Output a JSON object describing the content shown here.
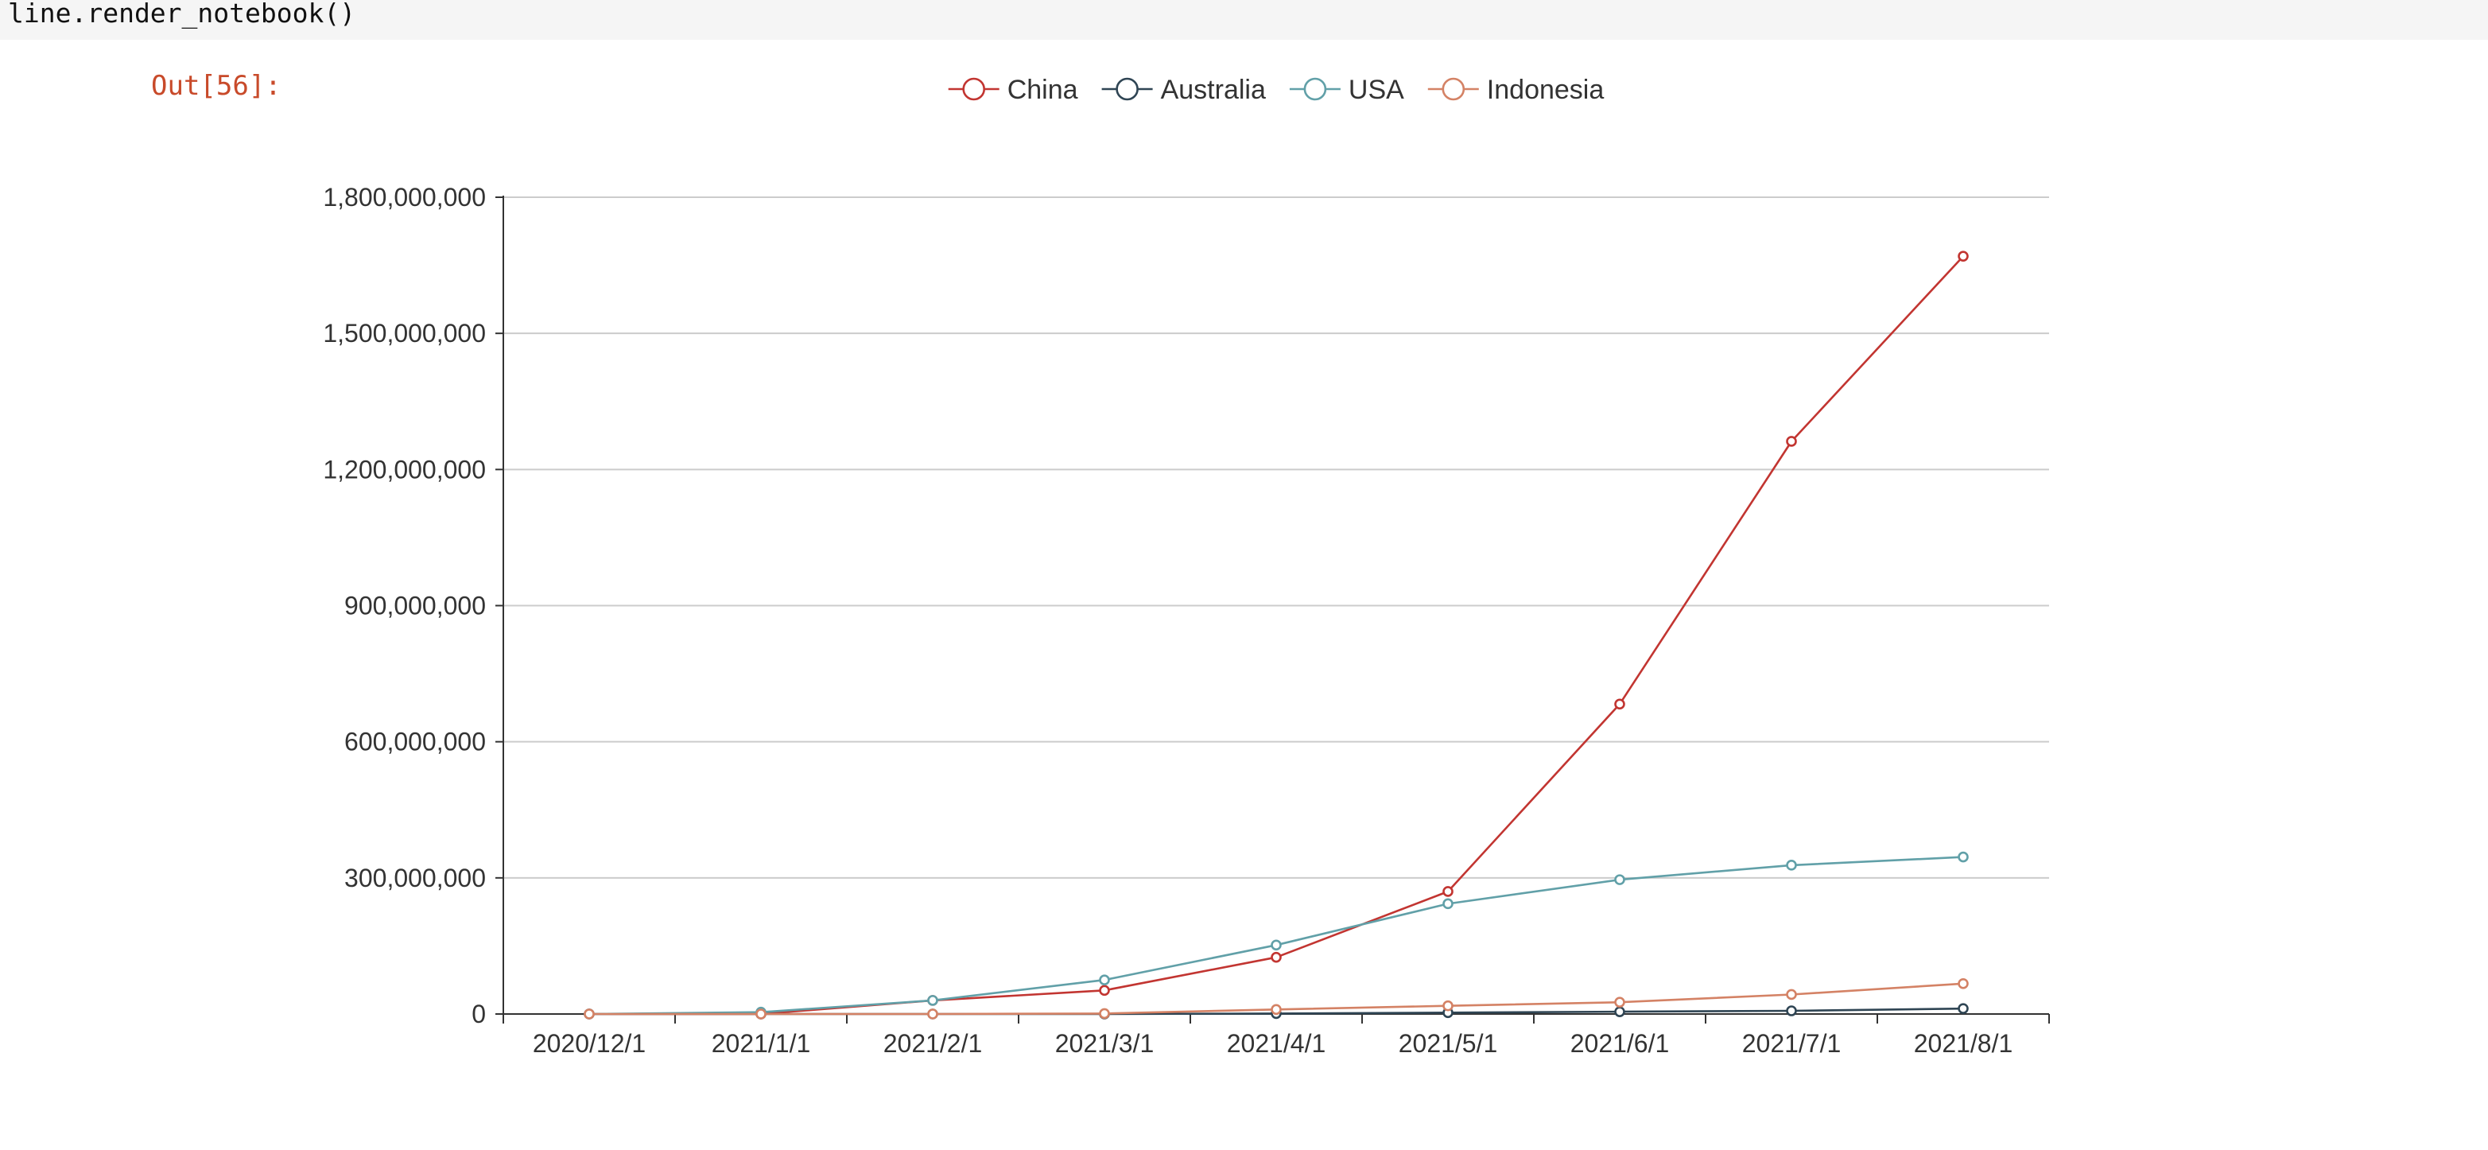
{
  "notebook": {
    "code_line": "line.render_notebook()",
    "out_prompt": "Out[56]:"
  },
  "chart_data": {
    "type": "line",
    "title": "",
    "xlabel": "",
    "ylabel": "",
    "legend_position": "top-center",
    "grid": "horizontal",
    "x": [
      "2020/12/1",
      "2021/1/1",
      "2021/2/1",
      "2021/3/1",
      "2021/4/1",
      "2021/5/1",
      "2021/6/1",
      "2021/7/1",
      "2021/8/1"
    ],
    "ylim": [
      0,
      1800000000
    ],
    "yticks": [
      0,
      300000000,
      600000000,
      900000000,
      1200000000,
      1500000000,
      1800000000
    ],
    "ytick_labels": [
      "0",
      "300,000,000",
      "600,000,000",
      "900,000,000",
      "1,200,000,000",
      "1,500,000,000",
      "1,800,000,000"
    ],
    "series": [
      {
        "name": "China",
        "color": "#c23531",
        "values": [
          0,
          0,
          30000000,
          52000000,
          125000000,
          270000000,
          683000000,
          1262000000,
          1670000000
        ]
      },
      {
        "name": "Australia",
        "color": "#2f4554",
        "values": [
          0,
          0,
          0,
          0,
          1000000,
          3000000,
          5000000,
          7000000,
          12000000
        ]
      },
      {
        "name": "USA",
        "color": "#61a0a8",
        "values": [
          0,
          4000000,
          30000000,
          75000000,
          152000000,
          243000000,
          296000000,
          328000000,
          346000000
        ]
      },
      {
        "name": "Indonesia",
        "color": "#d48265",
        "values": [
          0,
          0,
          0,
          1000000,
          10000000,
          18000000,
          26000000,
          43000000,
          67000000
        ]
      }
    ]
  }
}
